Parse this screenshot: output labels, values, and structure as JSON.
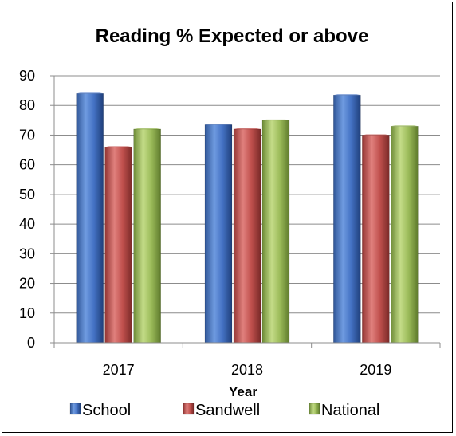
{
  "chart_data": {
    "type": "bar",
    "title": "Reading % Expected or above",
    "xlabel": "Year",
    "ylabel": "",
    "categories": [
      "2017",
      "2018",
      "2019"
    ],
    "series": [
      {
        "name": "School",
        "values": [
          84,
          73.5,
          83.5
        ],
        "color": "#4472C4"
      },
      {
        "name": "Sandwell",
        "values": [
          66,
          72,
          70
        ],
        "color": "#C0504D"
      },
      {
        "name": "National",
        "values": [
          72,
          75,
          73
        ],
        "color": "#9BBB59"
      }
    ],
    "ylim": [
      0,
      90
    ],
    "yticks": [
      0,
      10,
      20,
      30,
      40,
      50,
      60,
      70,
      80,
      90
    ],
    "grid": true,
    "legend_position": "bottom"
  }
}
